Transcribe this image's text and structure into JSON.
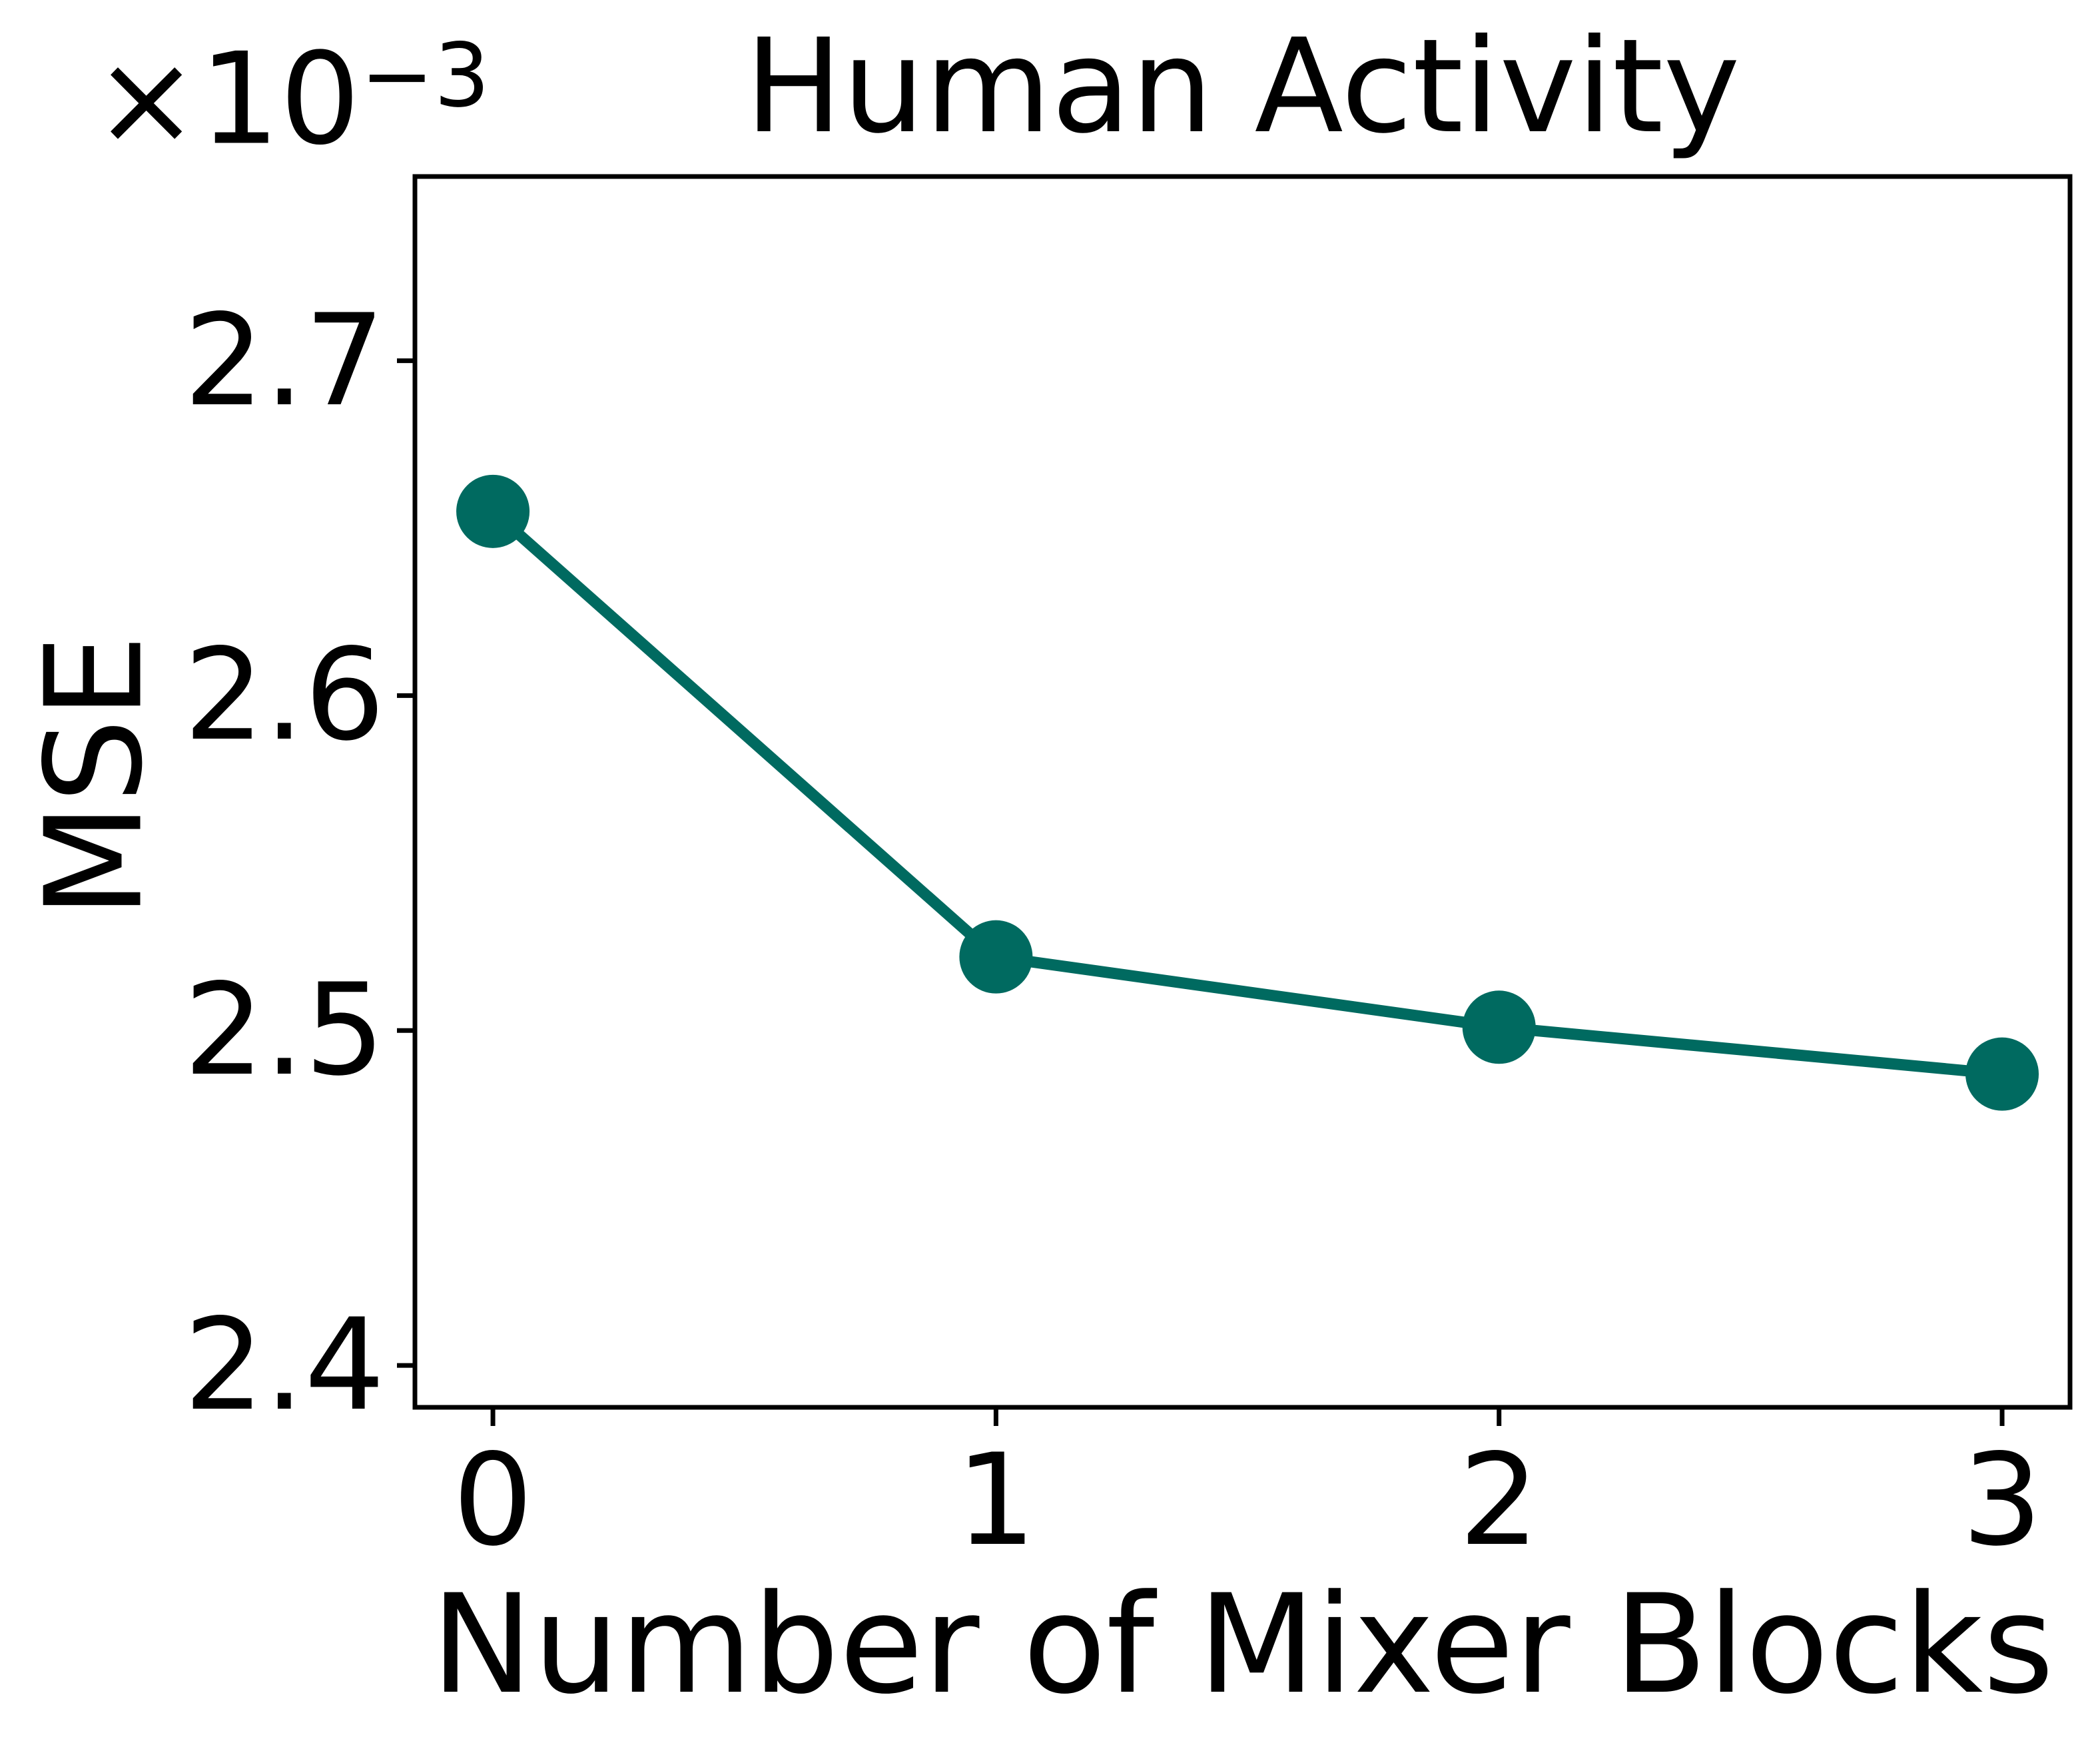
{
  "chart_data": {
    "type": "line",
    "title": "Human Activity",
    "xlabel": "Number of Mixer Blocks",
    "ylabel": "MSE",
    "y_offset_base": "×10",
    "y_offset_exp": "−3",
    "y_offset_text": "×10⁻³",
    "values_unit": "1e-3",
    "x": [
      0,
      1,
      2,
      3
    ],
    "series": [
      {
        "name": "MSE",
        "values": [
          2.655,
          2.522,
          2.501,
          2.487
        ]
      }
    ],
    "xtick_values": [
      0,
      1,
      2,
      3
    ],
    "xtick_labels": [
      "0",
      "1",
      "2",
      "3"
    ],
    "ytick_values": [
      2.4,
      2.5,
      2.6,
      2.7
    ],
    "ytick_labels": [
      "2.4",
      "2.5",
      "2.6",
      "2.7"
    ],
    "xlim": [
      -0.155,
      3.135
    ],
    "ylim": [
      2.3875,
      2.755
    ],
    "grid": false,
    "legend": "none",
    "line_color": "#006A60",
    "axis_color": "#000000",
    "marker": "circle"
  }
}
